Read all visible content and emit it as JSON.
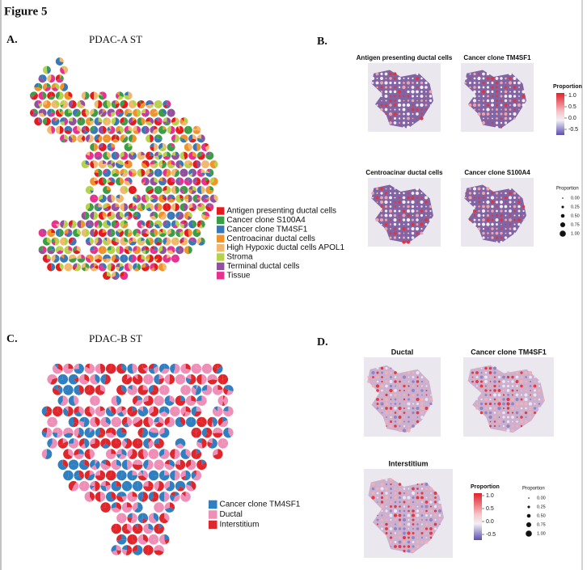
{
  "figure_title": "Figure 5",
  "panels": [
    {
      "label": "A.",
      "title": "PDAC-A ST",
      "legend": [
        {
          "name": "Antigen presenting ductal cells",
          "color": "#e41a1c"
        },
        {
          "name": "Cancer clone  S100A4",
          "color": "#3a9e47"
        },
        {
          "name": "Cancer clone  TM4SF1",
          "color": "#3778b8"
        },
        {
          "name": "Centroacinar ductal cells",
          "color": "#f0932b"
        },
        {
          "name": "High Hypoxic ductal cells  APOL1",
          "color": "#f3b870"
        },
        {
          "name": "Stroma",
          "color": "#b5d24a"
        },
        {
          "name": "Terminal ductal cells",
          "color": "#93509f"
        },
        {
          "name": "Tissue",
          "color": "#e8318f"
        }
      ]
    },
    {
      "label": "B.",
      "maps": [
        "Antigen presenting ductal cells",
        "Cancer clone  TM4SF1",
        "Centroacinar ductal cells",
        "Cancer clone  S100A4"
      ],
      "colorbar": {
        "title": "Proportion",
        "ticks": [
          "1.0",
          "0.5",
          "0.0",
          "-0.5"
        ]
      },
      "size_legend": {
        "title": "Proportion",
        "ticks": [
          "0.00",
          "0.25",
          "0.50",
          "0.75",
          "1.00"
        ]
      }
    },
    {
      "label": "C.",
      "title": "PDAC-B ST",
      "legend": [
        {
          "name": "Cancer clone TM4SF1",
          "color": "#2f7fc1"
        },
        {
          "name": "Ductal",
          "color": "#ef8fb8"
        },
        {
          "name": "Interstitium",
          "color": "#e0262b"
        }
      ]
    },
    {
      "label": "D.",
      "maps": [
        "Ductal",
        "Cancer clone TM4SF1",
        "Interstitium"
      ],
      "colorbar": {
        "title": "Proportion",
        "ticks": [
          "1.0",
          "0.5",
          "0.0",
          "-0.5"
        ]
      },
      "size_legend": {
        "title": "Proportion",
        "ticks": [
          "0.00",
          "0.25",
          "0.50",
          "0.75",
          "1.00"
        ]
      }
    }
  ]
}
